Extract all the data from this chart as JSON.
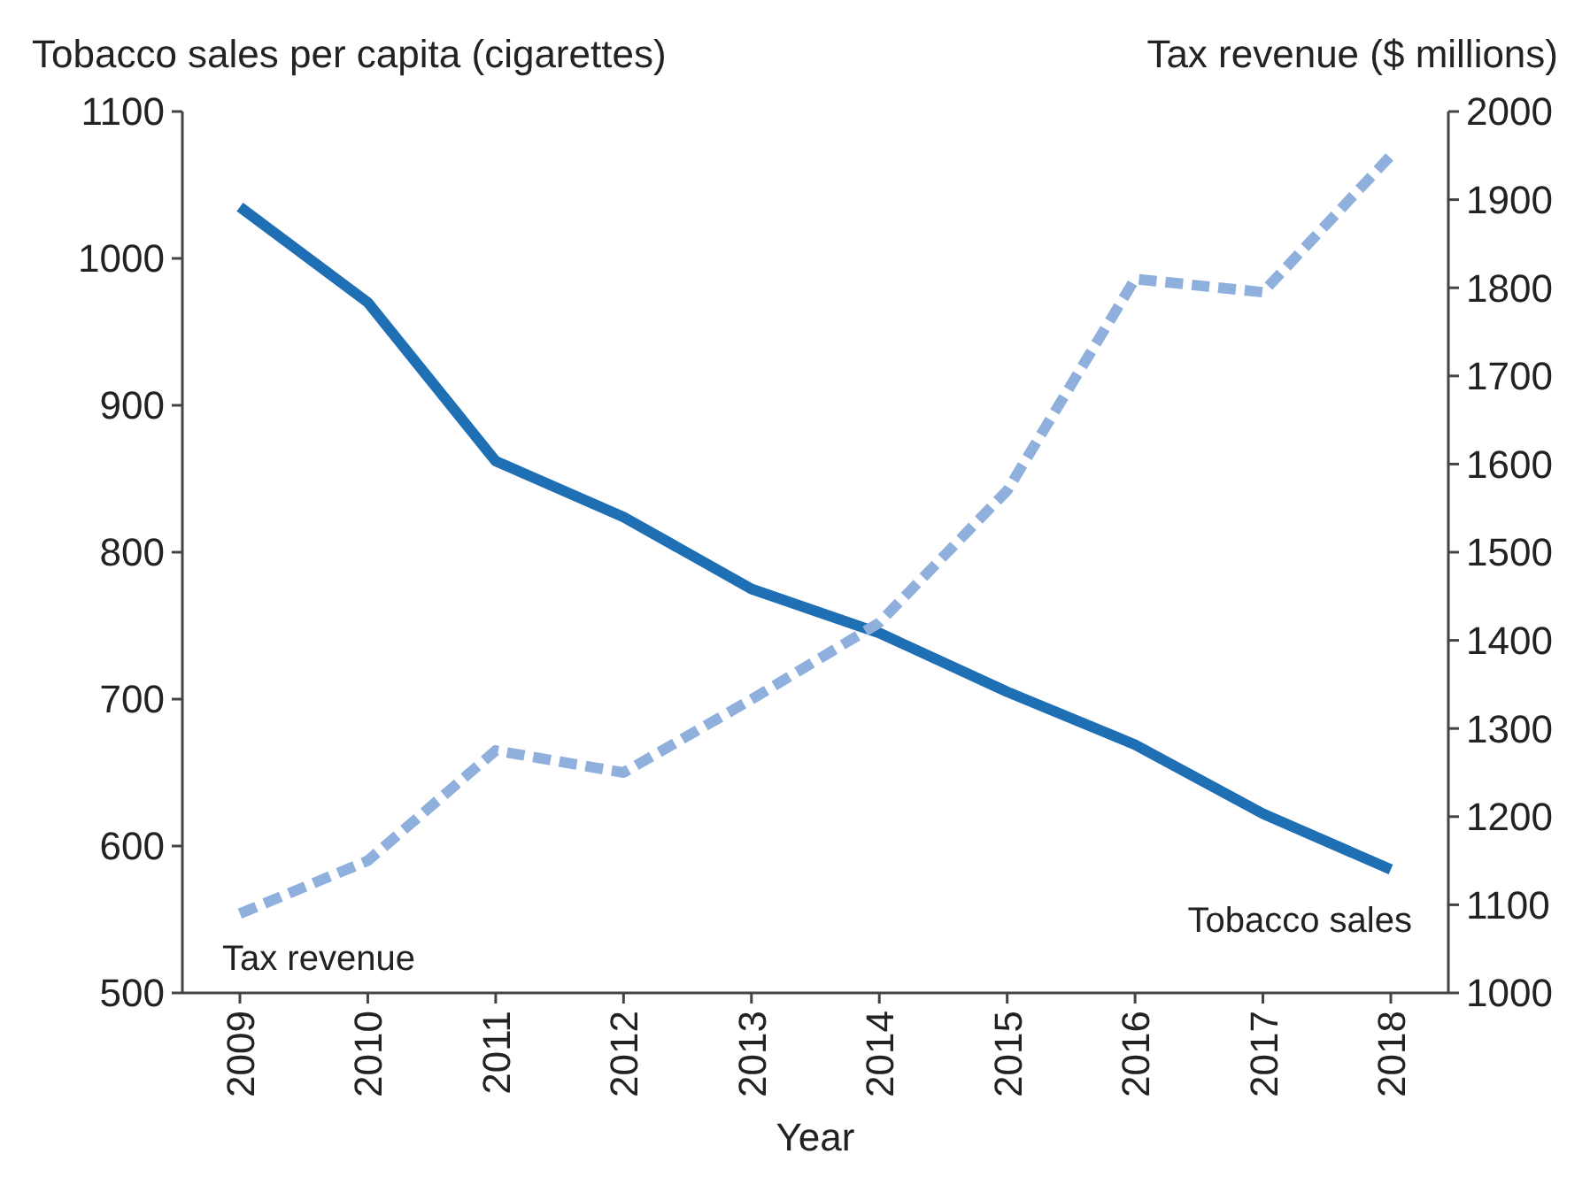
{
  "chart_data": {
    "type": "line",
    "xlabel": "Year",
    "ylabel": "Tobacco sales per capita (cigarettes)",
    "y2label": "Tax revenue ($ millions)",
    "categories": [
      "2009",
      "2010",
      "2011",
      "2012",
      "2013",
      "2014",
      "2015",
      "2016",
      "2017",
      "2018"
    ],
    "series": [
      {
        "name": "Tobacco sales",
        "color": "#1f6fb5",
        "line_style": "solid",
        "values": [
          1035,
          970,
          862,
          824,
          775,
          745,
          705,
          669,
          622,
          584
        ]
      },
      {
        "name": "Tax revenue",
        "color": "#8fb0dc",
        "line_style": "dashed",
        "axis": "y2",
        "values": [
          1090,
          1150,
          1275,
          1250,
          1333,
          1420,
          1570,
          1810,
          1795,
          1950
        ]
      }
    ],
    "ylim": [
      500,
      1100
    ],
    "yticks": [
      500,
      600,
      700,
      800,
      900,
      1000,
      1100
    ],
    "y2lim": [
      1000,
      2000
    ],
    "y2ticks": [
      1000,
      1100,
      1200,
      1300,
      1400,
      1500,
      1600,
      1700,
      1800,
      1900,
      2000
    ],
    "grid": false,
    "marker": "none"
  }
}
